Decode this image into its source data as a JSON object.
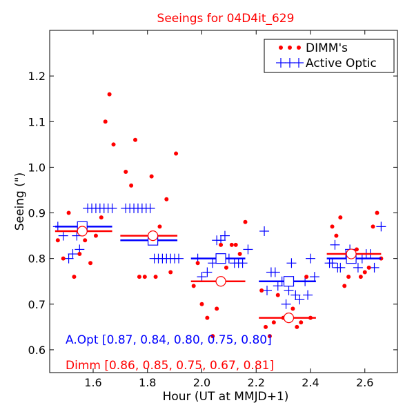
{
  "chart_data": {
    "type": "scatter",
    "title": "Seeings for 04D4it_629",
    "xlabel": "Hour (UT at MMJD+1)",
    "ylabel": "Seeing (\")",
    "xlim": [
      1.44,
      2.72
    ],
    "ylim": [
      0.55,
      1.3
    ],
    "xticks": [
      1.6,
      1.8,
      2.0,
      2.2,
      2.4,
      2.6
    ],
    "xtick_labels": [
      "1.6",
      "1.8",
      "2.0",
      "2.2",
      "2.4",
      "2.6"
    ],
    "yticks": [
      0.6,
      0.7,
      0.8,
      0.9,
      1.0,
      1.1,
      1.2
    ],
    "ytick_labels": [
      "0.6",
      "0.7",
      "0.8",
      "0.9",
      "1.0",
      "1.1",
      "1.2"
    ],
    "grid": false,
    "legend_position": "top-right",
    "colors": {
      "dimm": "#ff0000",
      "active_optic": "#0000ff"
    },
    "series": [
      {
        "name": "DIMM's",
        "marker": "dot",
        "points": [
          [
            1.47,
            0.84
          ],
          [
            1.49,
            0.8
          ],
          [
            1.51,
            0.9
          ],
          [
            1.53,
            0.76
          ],
          [
            1.55,
            0.81
          ],
          [
            1.57,
            0.84
          ],
          [
            1.59,
            0.79
          ],
          [
            1.61,
            0.85
          ],
          [
            1.63,
            0.89
          ],
          [
            1.645,
            1.1
          ],
          [
            1.66,
            1.16
          ],
          [
            1.675,
            1.05
          ],
          [
            1.72,
            0.99
          ],
          [
            1.74,
            0.96
          ],
          [
            1.755,
            1.06
          ],
          [
            1.77,
            0.76
          ],
          [
            1.79,
            0.76
          ],
          [
            1.815,
            0.98
          ],
          [
            1.83,
            0.76
          ],
          [
            1.845,
            0.87
          ],
          [
            1.87,
            0.93
          ],
          [
            1.885,
            0.77
          ],
          [
            1.905,
            1.03
          ],
          [
            1.97,
            0.74
          ],
          [
            1.985,
            0.79
          ],
          [
            2.0,
            0.7
          ],
          [
            2.02,
            0.67
          ],
          [
            2.04,
            0.63
          ],
          [
            2.055,
            0.69
          ],
          [
            2.07,
            0.83
          ],
          [
            2.09,
            0.78
          ],
          [
            2.11,
            0.83
          ],
          [
            2.125,
            0.83
          ],
          [
            2.14,
            0.81
          ],
          [
            2.16,
            0.88
          ],
          [
            2.22,
            0.73
          ],
          [
            2.235,
            0.65
          ],
          [
            2.25,
            0.63
          ],
          [
            2.265,
            0.66
          ],
          [
            2.28,
            0.72
          ],
          [
            2.3,
            0.67
          ],
          [
            2.32,
            0.67
          ],
          [
            2.335,
            0.69
          ],
          [
            2.35,
            0.65
          ],
          [
            2.365,
            0.66
          ],
          [
            2.385,
            0.76
          ],
          [
            2.4,
            0.67
          ],
          [
            2.48,
            0.87
          ],
          [
            2.495,
            0.85
          ],
          [
            2.51,
            0.89
          ],
          [
            2.525,
            0.74
          ],
          [
            2.54,
            0.76
          ],
          [
            2.555,
            0.8
          ],
          [
            2.57,
            0.82
          ],
          [
            2.585,
            0.76
          ],
          [
            2.6,
            0.77
          ],
          [
            2.615,
            0.78
          ],
          [
            2.63,
            0.87
          ],
          [
            2.645,
            0.9
          ],
          [
            2.66,
            0.8
          ]
        ]
      },
      {
        "name": "Active Optic",
        "marker": "plus",
        "points": [
          [
            1.47,
            0.87
          ],
          [
            1.49,
            0.85
          ],
          [
            1.51,
            0.8
          ],
          [
            1.525,
            0.81
          ],
          [
            1.54,
            0.85
          ],
          [
            1.55,
            0.82
          ],
          [
            1.58,
            0.91
          ],
          [
            1.595,
            0.91
          ],
          [
            1.61,
            0.91
          ],
          [
            1.625,
            0.91
          ],
          [
            1.64,
            0.91
          ],
          [
            1.655,
            0.91
          ],
          [
            1.67,
            0.91
          ],
          [
            1.72,
            0.91
          ],
          [
            1.735,
            0.91
          ],
          [
            1.75,
            0.91
          ],
          [
            1.765,
            0.91
          ],
          [
            1.78,
            0.91
          ],
          [
            1.795,
            0.91
          ],
          [
            1.81,
            0.91
          ],
          [
            1.825,
            0.8
          ],
          [
            1.84,
            0.8
          ],
          [
            1.855,
            0.8
          ],
          [
            1.87,
            0.8
          ],
          [
            1.885,
            0.8
          ],
          [
            1.9,
            0.8
          ],
          [
            1.915,
            0.8
          ],
          [
            1.985,
            0.8
          ],
          [
            2.0,
            0.76
          ],
          [
            2.02,
            0.77
          ],
          [
            2.04,
            0.79
          ],
          [
            2.055,
            0.84
          ],
          [
            2.07,
            0.84
          ],
          [
            2.085,
            0.85
          ],
          [
            2.1,
            0.8
          ],
          [
            2.12,
            0.79
          ],
          [
            2.135,
            0.79
          ],
          [
            2.15,
            0.79
          ],
          [
            2.17,
            0.82
          ],
          [
            2.23,
            0.86
          ],
          [
            2.24,
            0.73
          ],
          [
            2.255,
            0.77
          ],
          [
            2.27,
            0.77
          ],
          [
            2.28,
            0.74
          ],
          [
            2.295,
            0.75
          ],
          [
            2.31,
            0.7
          ],
          [
            2.32,
            0.73
          ],
          [
            2.33,
            0.79
          ],
          [
            2.345,
            0.72
          ],
          [
            2.36,
            0.71
          ],
          [
            2.38,
            0.75
          ],
          [
            2.39,
            0.72
          ],
          [
            2.4,
            0.8
          ],
          [
            2.415,
            0.76
          ],
          [
            2.47,
            0.79
          ],
          [
            2.48,
            0.79
          ],
          [
            2.49,
            0.83
          ],
          [
            2.5,
            0.78
          ],
          [
            2.51,
            0.78
          ],
          [
            2.53,
            0.81
          ],
          [
            2.545,
            0.82
          ],
          [
            2.56,
            0.8
          ],
          [
            2.575,
            0.78
          ],
          [
            2.59,
            0.8
          ],
          [
            2.605,
            0.81
          ],
          [
            2.62,
            0.81
          ],
          [
            2.635,
            0.78
          ],
          [
            2.66,
            0.87
          ]
        ]
      }
    ],
    "bins": [
      {
        "x_range": [
          1.46,
          1.67
        ],
        "center": 1.56,
        "active_optic_mean": 0.87,
        "dimm_mean": 0.86
      },
      {
        "x_range": [
          1.7,
          1.91
        ],
        "center": 1.82,
        "active_optic_mean": 0.84,
        "dimm_mean": 0.85
      },
      {
        "x_range": [
          1.96,
          2.16
        ],
        "center": 2.07,
        "active_optic_mean": 0.8,
        "dimm_mean": 0.75
      },
      {
        "x_range": [
          2.21,
          2.42
        ],
        "center": 2.32,
        "active_optic_mean": 0.75,
        "dimm_mean": 0.67
      },
      {
        "x_range": [
          2.46,
          2.66
        ],
        "center": 2.55,
        "active_optic_mean": 0.8,
        "dimm_mean": 0.81
      }
    ],
    "annotations": {
      "aopt": "A.Opt [0.87, 0.84, 0.80, 0.75, 0.80]",
      "dimm": "Dimm [0.86, 0.85, 0.75, 0.67, 0.81]"
    }
  }
}
